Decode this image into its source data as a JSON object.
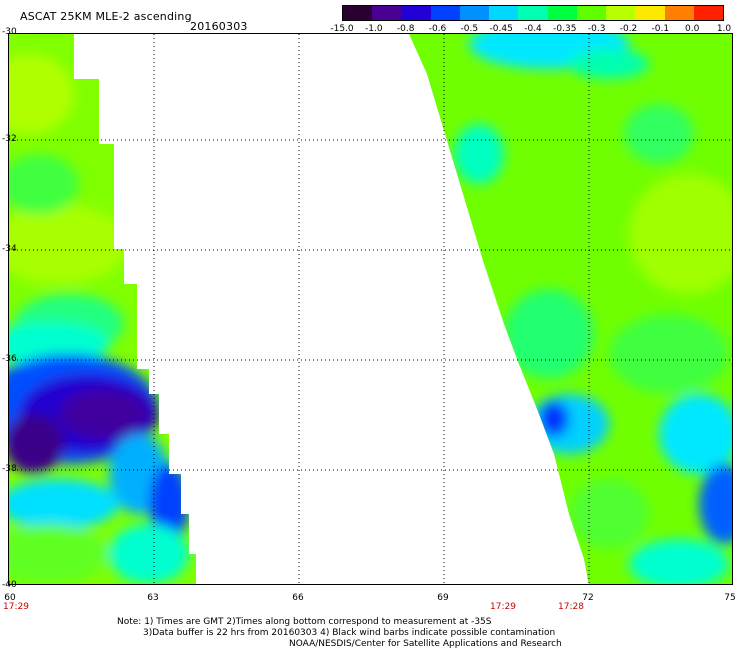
{
  "header": {
    "title": "ASCAT 25KM MLE-2 ascending",
    "date": "20160303"
  },
  "colorbar": {
    "labels": [
      "-15.0",
      "-1.0",
      "-0.8",
      "-0.6",
      "-0.5",
      "-0.45",
      "-0.4",
      "-0.35",
      "-0.3",
      "-0.2",
      "-0.1",
      "0.0",
      "1.0"
    ],
    "colors": [
      "#2a0030",
      "#4a0090",
      "#2200d8",
      "#0040ff",
      "#0090ff",
      "#00d8ff",
      "#00ffb0",
      "#00ff40",
      "#60ff00",
      "#b8ff00",
      "#ffe800",
      "#ff8000",
      "#ff2000"
    ]
  },
  "axes": {
    "y_labels": [
      "-30",
      "-32",
      "-34",
      "-36",
      "-38",
      "-40"
    ],
    "x_labels": [
      "60",
      "63",
      "66",
      "69",
      "72",
      "75"
    ],
    "time_labels": [
      "17:29",
      "17:29",
      "17:28"
    ]
  },
  "notes": {
    "line1": "Note: 1) Times are GMT 2)Times along bottom correspond to measurement at -35S",
    "line2": "3)Data buffer is 22 hrs from 20160303 4) Black wind barbs indicate possible contamination",
    "line3": "NOAA/NESDIS/Center for Satellite Applications and Research"
  },
  "colors": {
    "swath_base": "#7fff00",
    "low_region": "#1a00c8",
    "deep_low": "#3a0080",
    "grid": "#000000"
  }
}
